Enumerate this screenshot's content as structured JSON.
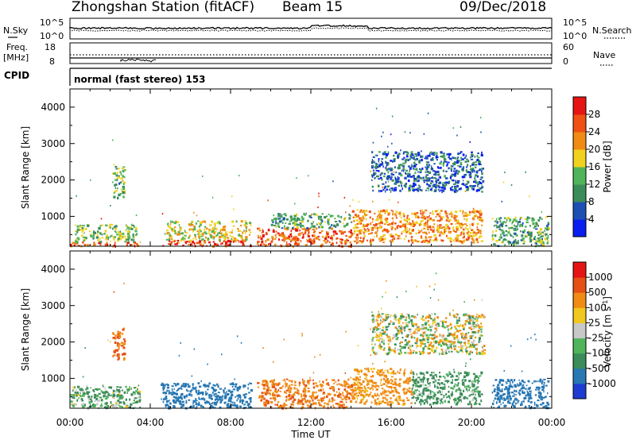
{
  "header": {
    "station": "Zhongshan Station (fitACF)",
    "beam": "Beam 15",
    "date": "09/Dec/2018"
  },
  "top_panels": {
    "nsky_label": "N.Sky",
    "nsearch_label": "N.Search",
    "noise_ticks_left": [
      "10^5",
      "10^0"
    ],
    "noise_ticks_right": [
      "10^5",
      "10^0"
    ],
    "freq_label_1": "Freq.",
    "freq_label_2": "[MHz]",
    "freq_ticks": [
      "18",
      "8"
    ],
    "nave_label": "Nave",
    "nave_ticks": [
      "60",
      "0"
    ],
    "cpid_label": "CPID",
    "cpid_text": "normal (fast stereo) 153"
  },
  "colorbars": {
    "power": {
      "label": "Power [dB]",
      "ticks": [
        "28",
        "24",
        "20",
        "16",
        "12",
        "8",
        "4"
      ],
      "colors": [
        "#0a1ef0",
        "#1e50b4",
        "#3c8c5a",
        "#50b45a",
        "#f0d21e",
        "#f08c14",
        "#f05014",
        "#e61414"
      ]
    },
    "velocity": {
      "label": "Velocity [m s",
      "label_sup": "-1",
      "label_end": "]",
      "ticks": [
        "1000",
        "500",
        "100",
        "25",
        "-25",
        "-100",
        "-500",
        "-1000"
      ],
      "colors": [
        "#1e3cd2",
        "#2878b4",
        "#3c8c5a",
        "#50b45a",
        "#c8c8c8",
        "#f0c81e",
        "#f08c14",
        "#e65014",
        "#e61414"
      ]
    }
  },
  "chart_data": [
    {
      "type": "heatmap",
      "title": "",
      "ylabel": "Slant Range [km]",
      "xlabel": "",
      "xlim": [
        "00:00",
        "24:00"
      ],
      "ylim": [
        180,
        4500
      ],
      "yticks": [
        "1000",
        "2000",
        "3000",
        "4000"
      ],
      "colorbar": "Power [dB]",
      "bands": [
        {
          "t": [
            0.0,
            3.5
          ],
          "range": [
            200,
            320
          ],
          "power": 26
        },
        {
          "t": [
            0.2,
            3.3
          ],
          "range": [
            320,
            800
          ],
          "power": 14
        },
        {
          "t": [
            2.1,
            2.7
          ],
          "range": [
            1500,
            2400
          ],
          "power": 13
        },
        {
          "t": [
            4.5,
            9.0
          ],
          "range": [
            200,
            360
          ],
          "power": 28
        },
        {
          "t": [
            4.7,
            9.0
          ],
          "range": [
            360,
            900
          ],
          "power": 18
        },
        {
          "t": [
            9.3,
            14.0
          ],
          "range": [
            200,
            700
          ],
          "power": 26
        },
        {
          "t": [
            10.0,
            14.0
          ],
          "range": [
            700,
            1100
          ],
          "power": 12
        },
        {
          "t": [
            14.0,
            20.5
          ],
          "range": [
            300,
            1200
          ],
          "power": 22
        },
        {
          "t": [
            15.0,
            20.6
          ],
          "range": [
            1700,
            2800
          ],
          "power": 7
        },
        {
          "t": [
            21.0,
            23.8
          ],
          "range": [
            200,
            1000
          ],
          "power": 12
        }
      ]
    },
    {
      "type": "heatmap",
      "title": "",
      "ylabel": "Slant Range [km]",
      "xlabel": "Time UT",
      "xlim": [
        "00:00",
        "24:00"
      ],
      "ylim": [
        180,
        4500
      ],
      "yticks": [
        "1000",
        "2000",
        "3000",
        "4000"
      ],
      "xticks": [
        "00:00",
        "04:00",
        "08:00",
        "12:00",
        "16:00",
        "20:00",
        "00:00"
      ],
      "colorbar": "Velocity [m s-1]",
      "bands": [
        {
          "t": [
            0.0,
            3.5
          ],
          "range": [
            200,
            800
          ],
          "velocity": 150
        },
        {
          "t": [
            2.1,
            2.7
          ],
          "range": [
            1500,
            2400
          ],
          "velocity": -500
        },
        {
          "t": [
            4.5,
            9.0
          ],
          "range": [
            200,
            900
          ],
          "velocity": 700
        },
        {
          "t": [
            9.3,
            14.0
          ],
          "range": [
            200,
            1000
          ],
          "velocity": -450
        },
        {
          "t": [
            14.0,
            17.0
          ],
          "range": [
            300,
            1300
          ],
          "velocity": -250
        },
        {
          "t": [
            17.0,
            20.5
          ],
          "range": [
            300,
            1200
          ],
          "velocity": 200
        },
        {
          "t": [
            15.0,
            20.6
          ],
          "range": [
            1700,
            2800
          ],
          "velocity": 0
        },
        {
          "t": [
            21.0,
            23.8
          ],
          "range": [
            200,
            1000
          ],
          "velocity": 800
        }
      ]
    }
  ]
}
